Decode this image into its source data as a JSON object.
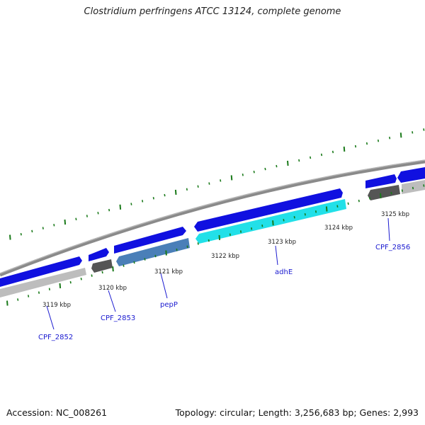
{
  "title": "Clostridium perfringens ATCC 13124, complete genome",
  "footer": {
    "accession": "Accession: NC_008261",
    "summary": "Topology: circular; Length: 3,256,683 bp; Genes: 2,993"
  },
  "colors": {
    "backbone": "#8a8a8a",
    "forward_cds": "#1010e0",
    "reverse_cds": "#bdbdbd",
    "dark_cds": "#555555",
    "highlight_cds": "#4a7fb8",
    "adhE_cds": "#22e0e8",
    "tick": "#1a7a1a",
    "label": "#1a1ad0"
  },
  "ruler": {
    "ticks": [
      {
        "label": "3119 kbp"
      },
      {
        "label": "3120 kbp"
      },
      {
        "label": "3121 kbp"
      },
      {
        "label": "3122 kbp"
      },
      {
        "label": "3123 kbp"
      },
      {
        "label": "3124 kbp"
      },
      {
        "label": "3125 kbp"
      }
    ]
  },
  "genes": [
    {
      "name": "CPF_2852"
    },
    {
      "name": "CPF_2853"
    },
    {
      "name": "pepP"
    },
    {
      "name": "adhE"
    },
    {
      "name": "CPF_2856"
    }
  ]
}
